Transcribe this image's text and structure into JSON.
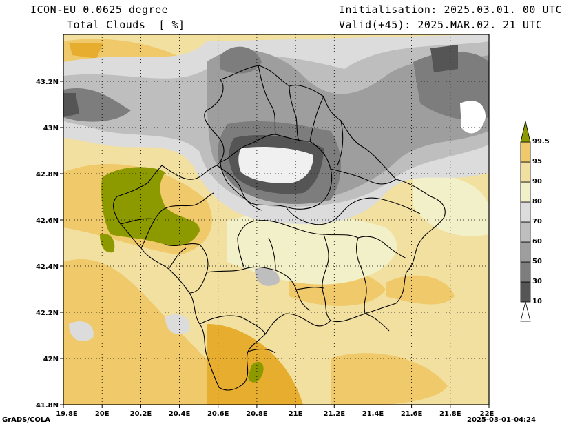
{
  "header": {
    "model": "ICON-EU 0.0625 degree",
    "field": "Total Clouds  [ %]",
    "init": "Initialisation: 2025.03.01. 00 UTC",
    "valid": "Valid(+45): 2025.MAR.02. 21 UTC"
  },
  "footer": {
    "left": "GrADS/COLA",
    "right": "2025-03-01-04:24"
  },
  "axes": {
    "lon_labels": [
      "19.8E",
      "20E",
      "20.2E",
      "20.4E",
      "20.6E",
      "20.8E",
      "21E",
      "21.2E",
      "21.4E",
      "21.6E",
      "21.8E",
      "22E"
    ],
    "lat_labels": [
      "43.2N",
      "43N",
      "42.8N",
      "42.6N",
      "42.4N",
      "42.2N",
      "42N",
      "41.8N"
    ]
  },
  "colorbar": {
    "labels": [
      "10",
      "30",
      "50",
      "60",
      "70",
      "80",
      "90",
      "95",
      "99.5"
    ],
    "colors": [
      "#ffffff",
      "#555555",
      "#7d7d7d",
      "#9e9e9e",
      "#bebebe",
      "#dcdcdc",
      "#f2f0c8",
      "#f2e0a0",
      "#efc96a",
      "#e6ad2e",
      "#8c9a00"
    ]
  }
}
